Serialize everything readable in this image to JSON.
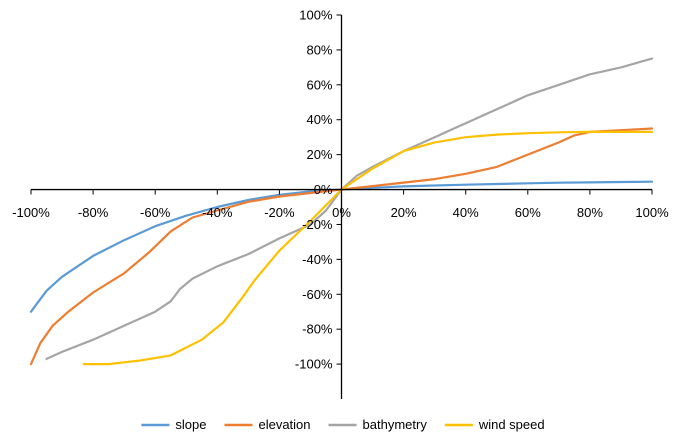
{
  "chart_data": {
    "type": "line",
    "title": "",
    "xlabel": "",
    "ylabel": "",
    "xlim": [
      -100,
      100
    ],
    "ylim": [
      -120,
      100
    ],
    "x_ticks": [
      "-100%",
      "-80%",
      "-60%",
      "-40%",
      "-20%",
      "0%",
      "20%",
      "40%",
      "60%",
      "80%",
      "100%"
    ],
    "y_ticks": [
      "-100%",
      "-80%",
      "-60%",
      "-40%",
      "-20%",
      "0%",
      "20%",
      "40%",
      "60%",
      "80%",
      "100%"
    ],
    "grid": false,
    "legend_position": "bottom",
    "series": [
      {
        "name": "slope",
        "color": "#5b9bd5",
        "points": [
          [
            -100,
            -70
          ],
          [
            -95,
            -58
          ],
          [
            -90,
            -50
          ],
          [
            -85,
            -44
          ],
          [
            -80,
            -38
          ],
          [
            -70,
            -29
          ],
          [
            -60,
            -21
          ],
          [
            -50,
            -15
          ],
          [
            -40,
            -10
          ],
          [
            -30,
            -6
          ],
          [
            -20,
            -3
          ],
          [
            -10,
            -1
          ],
          [
            0,
            0
          ],
          [
            10,
            1
          ],
          [
            20,
            1.8
          ],
          [
            30,
            2.3
          ],
          [
            40,
            2.8
          ],
          [
            50,
            3.2
          ],
          [
            60,
            3.6
          ],
          [
            70,
            3.9
          ],
          [
            80,
            4.1
          ],
          [
            90,
            4.3
          ],
          [
            100,
            4.5
          ]
        ]
      },
      {
        "name": "elevation",
        "color": "#ed7d31",
        "points": [
          [
            -100,
            -100
          ],
          [
            -97,
            -88
          ],
          [
            -93,
            -78
          ],
          [
            -88,
            -70
          ],
          [
            -80,
            -59
          ],
          [
            -70,
            -48
          ],
          [
            -62,
            -36
          ],
          [
            -55,
            -24
          ],
          [
            -48,
            -16
          ],
          [
            -40,
            -12
          ],
          [
            -30,
            -7
          ],
          [
            -20,
            -4
          ],
          [
            -10,
            -2
          ],
          [
            0,
            0
          ],
          [
            10,
            2
          ],
          [
            20,
            4
          ],
          [
            30,
            6
          ],
          [
            40,
            9
          ],
          [
            50,
            13
          ],
          [
            60,
            20
          ],
          [
            70,
            27
          ],
          [
            75,
            31
          ],
          [
            80,
            33
          ],
          [
            90,
            34
          ],
          [
            100,
            35
          ]
        ]
      },
      {
        "name": "bathymetry",
        "color": "#a5a5a5",
        "points": [
          [
            -95,
            -97
          ],
          [
            -90,
            -93
          ],
          [
            -80,
            -86
          ],
          [
            -70,
            -78
          ],
          [
            -60,
            -70
          ],
          [
            -55,
            -64
          ],
          [
            -52,
            -57
          ],
          [
            -48,
            -51
          ],
          [
            -40,
            -44
          ],
          [
            -30,
            -37
          ],
          [
            -20,
            -28
          ],
          [
            -10,
            -20
          ],
          [
            -5,
            -12
          ],
          [
            0,
            0
          ],
          [
            5,
            8
          ],
          [
            10,
            13
          ],
          [
            20,
            22
          ],
          [
            30,
            30
          ],
          [
            40,
            38
          ],
          [
            45,
            42
          ],
          [
            50,
            46
          ],
          [
            60,
            54
          ],
          [
            70,
            60
          ],
          [
            80,
            66
          ],
          [
            90,
            70
          ],
          [
            100,
            75
          ]
        ]
      },
      {
        "name": "wind speed",
        "color": "#ffc000",
        "points": [
          [
            -83,
            -100
          ],
          [
            -75,
            -100
          ],
          [
            -65,
            -98
          ],
          [
            -55,
            -95
          ],
          [
            -45,
            -86
          ],
          [
            -38,
            -76
          ],
          [
            -32,
            -62
          ],
          [
            -28,
            -52
          ],
          [
            -20,
            -35
          ],
          [
            -10,
            -18
          ],
          [
            0,
            0
          ],
          [
            10,
            12
          ],
          [
            20,
            22
          ],
          [
            30,
            27
          ],
          [
            40,
            30
          ],
          [
            50,
            31.5
          ],
          [
            60,
            32.3
          ],
          [
            70,
            32.8
          ],
          [
            80,
            33
          ],
          [
            90,
            33
          ],
          [
            100,
            33
          ]
        ]
      }
    ]
  }
}
